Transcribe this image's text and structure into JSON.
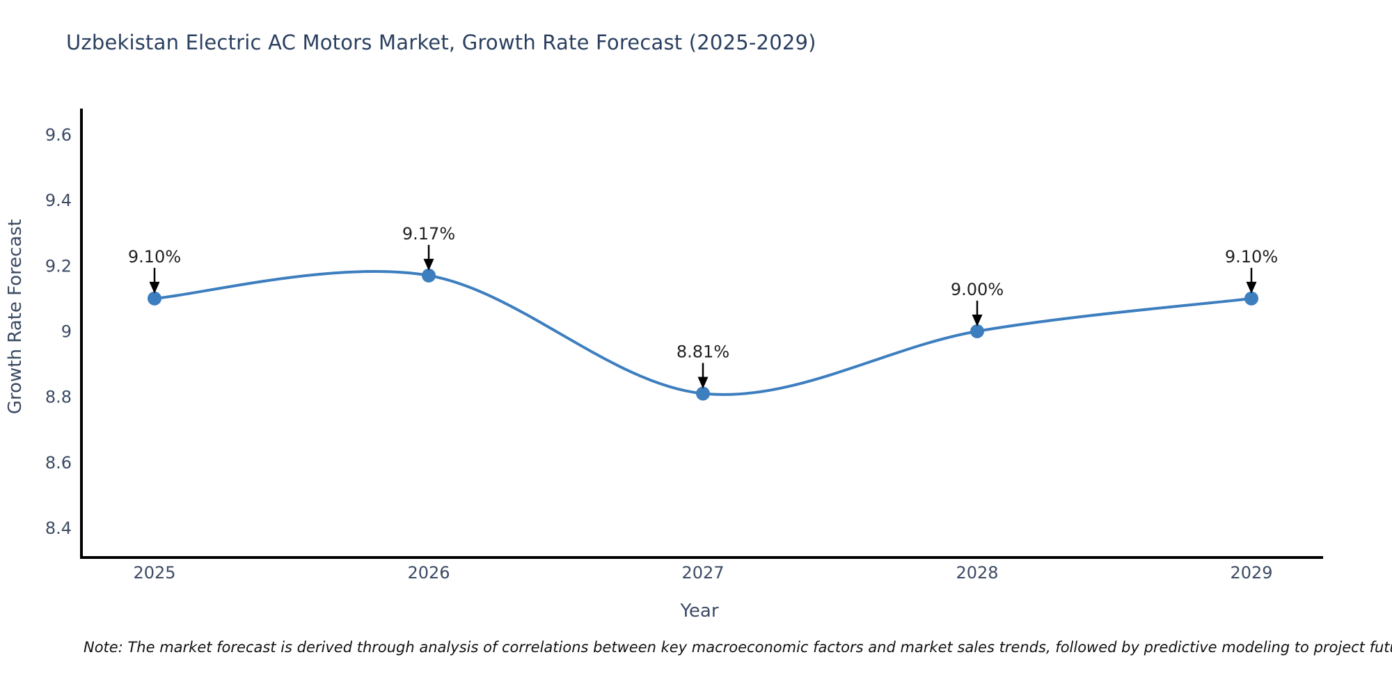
{
  "title": "Uzbekistan Electric AC Motors Market, Growth Rate Forecast (2025-2029)",
  "note": "Note: The market forecast is derived through analysis of correlations between key macroeconomic factors and market sales trends, followed by predictive modeling to project future sales",
  "chart_data": {
    "type": "line",
    "line_shape": "spline",
    "title": "Uzbekistan Electric AC Motors Market, Growth Rate Forecast (2025-2029)",
    "xlabel": "Year",
    "ylabel": "Growth Rate Forecast",
    "x": [
      2025,
      2026,
      2027,
      2028,
      2029
    ],
    "categories": [
      "2025",
      "2026",
      "2027",
      "2028",
      "2029"
    ],
    "values": [
      9.1,
      9.17,
      8.81,
      9.0,
      9.1
    ],
    "point_labels": [
      "9.10%",
      "9.17%",
      "8.81%",
      "9.00%",
      "9.10%"
    ],
    "ylim": [
      8.31,
      9.675
    ],
    "yticks": [
      9.6,
      9.4,
      9.2,
      9.0,
      8.8,
      8.6,
      8.4
    ],
    "ytick_labels": [
      "9.6",
      "9.4",
      "9.2",
      "9",
      "8.8",
      "8.6",
      "8.4"
    ],
    "xtick_labels": [
      "2025",
      "2026",
      "2027",
      "2028",
      "2029"
    ],
    "grid": false,
    "legend": "none",
    "annotation_arrows": true,
    "colors": {
      "line": "#3d7ebf",
      "marker": "#3d7ebf",
      "axis_line": "#000000",
      "tick_text": "#3b4a63",
      "axis_title_text": "#3b4a63",
      "annotation_text": "#1f1f1f",
      "annotation_arrow": "#000000",
      "title_text": "#2a3f5f",
      "background": "#ffffff"
    }
  }
}
